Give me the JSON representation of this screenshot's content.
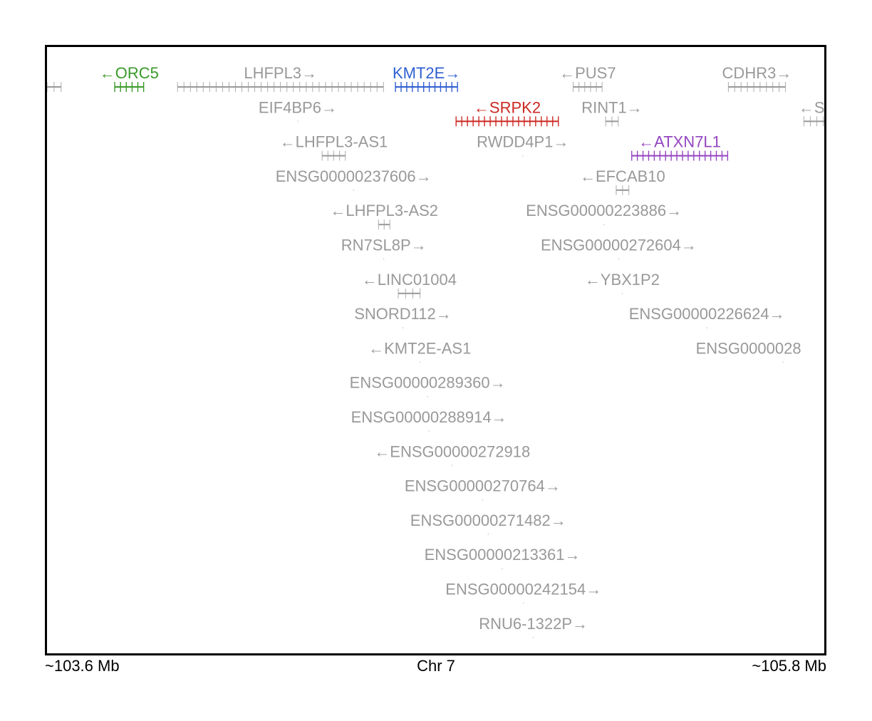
{
  "region": {
    "chromosome_label": "Chr 7",
    "start_label": "~103.6 Mb",
    "end_label": "~105.8 Mb"
  },
  "colors": {
    "highlight_green": "#3a9a2a",
    "highlight_blue": "#2f5fd0",
    "highlight_red": "#cc2a22",
    "highlight_purple": "#9445c0",
    "other_gene": "#999999"
  },
  "genes": [
    {
      "name": "ORC5",
      "label": "←ORC5",
      "strand": "-",
      "color": "#3a9a2a",
      "row": 0,
      "start": 103.686,
      "end": 103.727
    },
    {
      "name": "LHFPL3",
      "label": "LHFPL3→",
      "strand": "+",
      "color": "#999999",
      "row": 0,
      "start": 103.775,
      "end": 104.067
    },
    {
      "name": "KMT2E",
      "label": "KMT2E→",
      "strand": "+",
      "color": "#2f5fd0",
      "row": 0,
      "start": 104.084,
      "end": 104.172
    },
    {
      "name": "PUS7",
      "label": "←PUS7",
      "strand": "-",
      "color": "#999999",
      "row": 0,
      "start": 104.336,
      "end": 104.377
    },
    {
      "name": "CDHR3",
      "label": "CDHR3→",
      "strand": "+",
      "color": "#999999",
      "row": 0,
      "start": 104.556,
      "end": 104.637
    },
    {
      "name": "EIF4BP6",
      "label": "EIF4BP6→",
      "strand": "+",
      "color": "#999999",
      "row": 1,
      "start": 103.945,
      "end": 103.946
    },
    {
      "name": "SRPK2",
      "label": "←SRPK2",
      "strand": "-",
      "color": "#cc2a22",
      "row": 1,
      "start": 104.17,
      "end": 104.315
    },
    {
      "name": "RINT1",
      "label": "RINT1→",
      "strand": "+",
      "color": "#999999",
      "row": 1,
      "start": 104.382,
      "end": 104.4
    },
    {
      "name": "SY",
      "label": "←SY",
      "strand": "-",
      "color": "#999999",
      "row": 1,
      "start": 104.663,
      "end": 104.7
    },
    {
      "name": "LHFPL3-AS1",
      "label": "←LHFPL3-AS1",
      "strand": "-",
      "color": "#999999",
      "row": 2,
      "start": 103.98,
      "end": 104.013
    },
    {
      "name": "RWDD4P1",
      "label": "RWDD4P1→",
      "strand": "+",
      "color": "#999999",
      "row": 2,
      "start": 104.264,
      "end": 104.265
    },
    {
      "name": "ATXN7L1",
      "label": "←ATXN7L1",
      "strand": "-",
      "color": "#9445c0",
      "row": 2,
      "start": 104.419,
      "end": 104.555
    },
    {
      "name": "ENSG00000237606",
      "label": "ENSG00000237606→",
      "strand": "+",
      "color": "#999999",
      "row": 3,
      "start": 104.024,
      "end": 104.025
    },
    {
      "name": "EFCAB10",
      "label": "←EFCAB10",
      "strand": "-",
      "color": "#999999",
      "row": 3,
      "start": 104.397,
      "end": 104.415
    },
    {
      "name": "LHFPL3-AS2",
      "label": "←LHFPL3-AS2",
      "strand": "-",
      "color": "#999999",
      "row": 4,
      "start": 104.06,
      "end": 104.076
    },
    {
      "name": "ENSG00000223886",
      "label": "ENSG00000223886→",
      "strand": "+",
      "color": "#999999",
      "row": 4,
      "start": 104.379,
      "end": 104.38
    },
    {
      "name": "RN7SL8P",
      "label": "RN7SL8P→",
      "strand": "+",
      "color": "#999999",
      "row": 5,
      "start": 104.067,
      "end": 104.068
    },
    {
      "name": "ENSG00000272604",
      "label": "ENSG00000272604→",
      "strand": "+",
      "color": "#999999",
      "row": 5,
      "start": 104.4,
      "end": 104.401
    },
    {
      "name": "LINC01004",
      "label": "←LINC01004",
      "strand": "-",
      "color": "#999999",
      "row": 6,
      "start": 104.088,
      "end": 104.119
    },
    {
      "name": "YBX1P2",
      "label": "←YBX1P2",
      "strand": "-",
      "color": "#999999",
      "row": 6,
      "start": 104.405,
      "end": 104.406
    },
    {
      "name": "SNORD112",
      "label": "SNORD112→",
      "strand": "+",
      "color": "#999999",
      "row": 7,
      "start": 104.094,
      "end": 104.095
    },
    {
      "name": "ENSG00000226624",
      "label": "ENSG00000226624→",
      "strand": "+",
      "color": "#999999",
      "row": 7,
      "start": 104.525,
      "end": 104.526
    },
    {
      "name": "ENSG0000028",
      "label": "ENSG0000028",
      "strand": "",
      "color": "#999999",
      "row": 8,
      "start": 104.633,
      "end": 104.634
    },
    {
      "name": "KMT2E-AS1",
      "label": "←KMT2E-AS1",
      "strand": "-",
      "color": "#999999",
      "row": 8,
      "start": 104.118,
      "end": 104.119
    },
    {
      "name": "ENSG00000289360",
      "label": "ENSG00000289360→",
      "strand": "+",
      "color": "#999999",
      "row": 9,
      "start": 104.129,
      "end": 104.13
    },
    {
      "name": "ENSG00000288914",
      "label": "ENSG00000288914→",
      "strand": "+",
      "color": "#999999",
      "row": 10,
      "start": 104.131,
      "end": 104.132
    },
    {
      "name": "ENSG00000272918",
      "label": "←ENSG00000272918",
      "strand": "-",
      "color": "#999999",
      "row": 11,
      "start": 104.164,
      "end": 104.165
    },
    {
      "name": "ENSG00000270764",
      "label": "ENSG00000270764→",
      "strand": "+",
      "color": "#999999",
      "row": 12,
      "start": 104.207,
      "end": 104.208
    },
    {
      "name": "ENSG00000271482",
      "label": "ENSG00000271482→",
      "strand": "+",
      "color": "#999999",
      "row": 13,
      "start": 104.215,
      "end": 104.216
    },
    {
      "name": "ENSG00000213361",
      "label": "ENSG00000213361→",
      "strand": "+",
      "color": "#999999",
      "row": 14,
      "start": 104.235,
      "end": 104.236
    },
    {
      "name": "ENSG00000242154",
      "label": "ENSG00000242154→",
      "strand": "+",
      "color": "#999999",
      "row": 15,
      "start": 104.265,
      "end": 104.266
    },
    {
      "name": "RNU6-1322P",
      "label": "RNU6-1322P→",
      "strand": "+",
      "color": "#999999",
      "row": 16,
      "start": 104.279,
      "end": 104.28
    },
    {
      "name": "offscreen-left",
      "label": "",
      "strand": "",
      "color": "#999999",
      "row": 0,
      "start": 103.58,
      "end": 103.61
    }
  ]
}
